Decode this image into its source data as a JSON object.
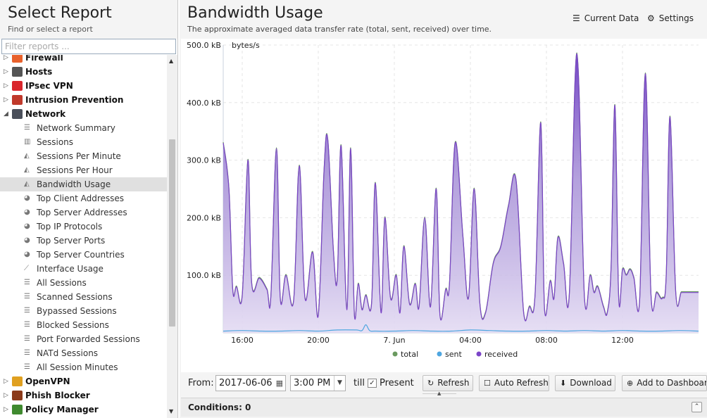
{
  "left": {
    "title": "Select Report",
    "subtitle": "Find or select a report",
    "filter_placeholder": "Filter reports ...",
    "categories_top": [
      {
        "label": "Firewall",
        "icon": "firewall-icon",
        "color": "#e8612c"
      },
      {
        "label": "Hosts",
        "icon": "hosts-icon",
        "color": "#555555"
      },
      {
        "label": "IPsec VPN",
        "icon": "ipsec-vpn-icon",
        "color": "#d9262c"
      },
      {
        "label": "Intrusion Prevention",
        "icon": "intrusion-prevention-icon",
        "color": "#c0392b"
      }
    ],
    "network": {
      "label": "Network",
      "icon": "network-icon",
      "color": "#4a4f5a"
    },
    "network_items": [
      {
        "label": "Network Summary",
        "icon": "list-icon"
      },
      {
        "label": "Sessions",
        "icon": "bar-chart-icon"
      },
      {
        "label": "Sessions Per Minute",
        "icon": "area-chart-icon"
      },
      {
        "label": "Sessions Per Hour",
        "icon": "area-chart-icon"
      },
      {
        "label": "Bandwidth Usage",
        "icon": "area-chart-icon",
        "selected": true
      },
      {
        "label": "Top Client Addresses",
        "icon": "pie-chart-icon"
      },
      {
        "label": "Top Server Addresses",
        "icon": "pie-chart-icon"
      },
      {
        "label": "Top IP Protocols",
        "icon": "pie-chart-icon"
      },
      {
        "label": "Top Server Ports",
        "icon": "pie-chart-icon"
      },
      {
        "label": "Top Server Countries",
        "icon": "pie-chart-icon"
      },
      {
        "label": "Interface Usage",
        "icon": "line-chart-icon"
      },
      {
        "label": "All Sessions",
        "icon": "list-icon"
      },
      {
        "label": "Scanned Sessions",
        "icon": "list-icon"
      },
      {
        "label": "Bypassed Sessions",
        "icon": "list-icon"
      },
      {
        "label": "Blocked Sessions",
        "icon": "list-icon"
      },
      {
        "label": "Port Forwarded Sessions",
        "icon": "list-icon"
      },
      {
        "label": "NATd Sessions",
        "icon": "list-icon"
      },
      {
        "label": "All Session Minutes",
        "icon": "list-icon"
      }
    ],
    "categories_bottom": [
      {
        "label": "OpenVPN",
        "icon": "openvpn-icon",
        "color": "#e0a020"
      },
      {
        "label": "Phish Blocker",
        "icon": "phish-blocker-icon",
        "color": "#8b3a1a"
      },
      {
        "label": "Policy Manager",
        "icon": "policy-manager-icon",
        "color": "#3f8a2f"
      }
    ]
  },
  "report": {
    "title": "Bandwidth Usage",
    "description": "The approximate averaged data transfer rate (total, sent, received) over time.",
    "current_data_label": "Current Data",
    "settings_label": "Settings"
  },
  "toolbar": {
    "from_label": "From:",
    "from_date": "2017-06-06",
    "from_time": "3:00 PM",
    "till_label": "till",
    "present_label": "Present",
    "present_checked": true,
    "refresh_label": "Refresh",
    "auto_refresh_label": "Auto Refresh",
    "download_label": "Download",
    "add_dashboard_label": "Add to Dashboard"
  },
  "conditions": {
    "label": "Conditions: 0"
  },
  "chart_data": {
    "type": "area",
    "ylabel": "bytes/s",
    "y_ticks": [
      "500.0 kB",
      "400.0 kB",
      "300.0 kB",
      "200.0 kB",
      "100.0 kB"
    ],
    "ylim": [
      0,
      500
    ],
    "y_unit": "kB",
    "x_tick_labels": [
      "16:00",
      "20:00",
      "7. Jun",
      "04:00",
      "08:00",
      "12:00"
    ],
    "x_tick_hours": [
      16,
      20,
      24,
      28,
      32,
      36
    ],
    "xlim_hours": [
      15.0,
      40.0
    ],
    "grid": true,
    "legend_position": "bottom",
    "colors": {
      "total": "#6a9a5f",
      "sent": "#4ea6e0",
      "received": "#7b44c8"
    },
    "series": [
      {
        "name": "received",
        "x": [
          15.0,
          15.3,
          15.5,
          15.7,
          16.0,
          16.3,
          16.5,
          16.9,
          17.3,
          17.5,
          17.8,
          18.0,
          18.3,
          18.7,
          19.0,
          19.3,
          19.7,
          20.0,
          20.3,
          20.5,
          20.8,
          21.0,
          21.2,
          21.5,
          21.7,
          21.9,
          22.1,
          22.3,
          22.5,
          22.8,
          23.0,
          23.3,
          23.5,
          23.8,
          24.1,
          24.3,
          24.5,
          24.8,
          25.1,
          25.3,
          25.6,
          25.9,
          26.2,
          26.4,
          26.7,
          26.9,
          27.2,
          27.6,
          27.9,
          28.2,
          28.5,
          28.8,
          29.2,
          29.6,
          30.0,
          30.4,
          30.8,
          31.1,
          31.4,
          31.7,
          31.9,
          32.2,
          32.4,
          32.6,
          32.9,
          33.2,
          33.6,
          34.0,
          34.3,
          34.5,
          34.7,
          35.0,
          35.2,
          35.4,
          35.6,
          35.8,
          36.0,
          36.2,
          36.4,
          36.6,
          36.9,
          37.2,
          37.5,
          37.8,
          38.1,
          38.3,
          38.5,
          38.8,
          39.1,
          39.4,
          39.7,
          40.0
        ],
        "values": [
          330,
          250,
          75,
          80,
          65,
          300,
          85,
          95,
          75,
          60,
          320,
          60,
          100,
          55,
          290,
          60,
          140,
          30,
          280,
          335,
          140,
          95,
          325,
          40,
          320,
          30,
          85,
          40,
          65,
          50,
          260,
          35,
          200,
          60,
          100,
          35,
          150,
          50,
          85,
          45,
          200,
          45,
          250,
          30,
          75,
          85,
          330,
          170,
          60,
          250,
          50,
          35,
          120,
          150,
          220,
          265,
          35,
          45,
          65,
          365,
          40,
          90,
          60,
          165,
          120,
          65,
          485,
          60,
          100,
          70,
          80,
          45,
          35,
          115,
          395,
          60,
          110,
          100,
          110,
          95,
          55,
          450,
          65,
          70,
          60,
          100,
          375,
          70,
          70,
          70,
          70,
          70
        ]
      },
      {
        "name": "sent",
        "x": [
          15.0,
          16.0,
          17.0,
          18.0,
          19.0,
          20.0,
          21.0,
          22.0,
          22.3,
          22.5,
          22.7,
          23.0,
          24.0,
          25.0,
          26.0,
          27.0,
          28.0,
          29.0,
          30.0,
          31.0,
          32.0,
          33.0,
          34.0,
          35.0,
          36.0,
          37.0,
          38.0,
          39.0,
          40.0
        ],
        "values": [
          3,
          4,
          3,
          3,
          4,
          3,
          5,
          5,
          4,
          14,
          4,
          3,
          3,
          4,
          3,
          3,
          5,
          4,
          3,
          3,
          4,
          3,
          4,
          3,
          4,
          3,
          3,
          4,
          3
        ]
      }
    ],
    "legend": [
      "total",
      "sent",
      "received"
    ]
  }
}
